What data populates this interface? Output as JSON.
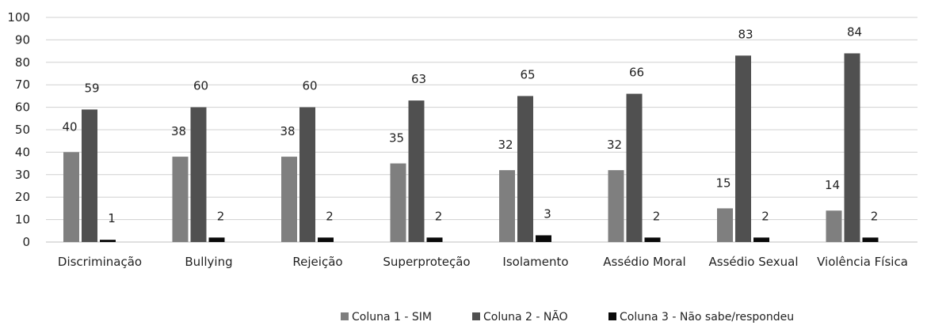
{
  "chart_data": {
    "type": "bar",
    "categories": [
      "Discriminação",
      "Bullying",
      "Rejeição",
      "Superproteção",
      "Isolamento",
      "Assédio Moral",
      "Assédio Sexual",
      "Violência Física"
    ],
    "series": [
      {
        "name": "Coluna 1 - SIM",
        "color": "#7f7f7f",
        "values": [
          40,
          38,
          38,
          35,
          32,
          32,
          15,
          14
        ]
      },
      {
        "name": "Coluna 2 - NÃO",
        "color": "#505050",
        "values": [
          59,
          60,
          60,
          63,
          65,
          66,
          83,
          84
        ]
      },
      {
        "name": "Coluna 3 - Não sabe/respondeu",
        "color": "#0a0a0a",
        "values": [
          1,
          2,
          2,
          2,
          3,
          2,
          2,
          2
        ]
      }
    ],
    "ylim": [
      0,
      100
    ],
    "yticks": [
      0,
      10,
      20,
      30,
      40,
      50,
      60,
      70,
      80,
      90,
      100
    ],
    "title": "",
    "xlabel": "",
    "ylabel": "",
    "grid": true,
    "legend_position": "bottom"
  }
}
